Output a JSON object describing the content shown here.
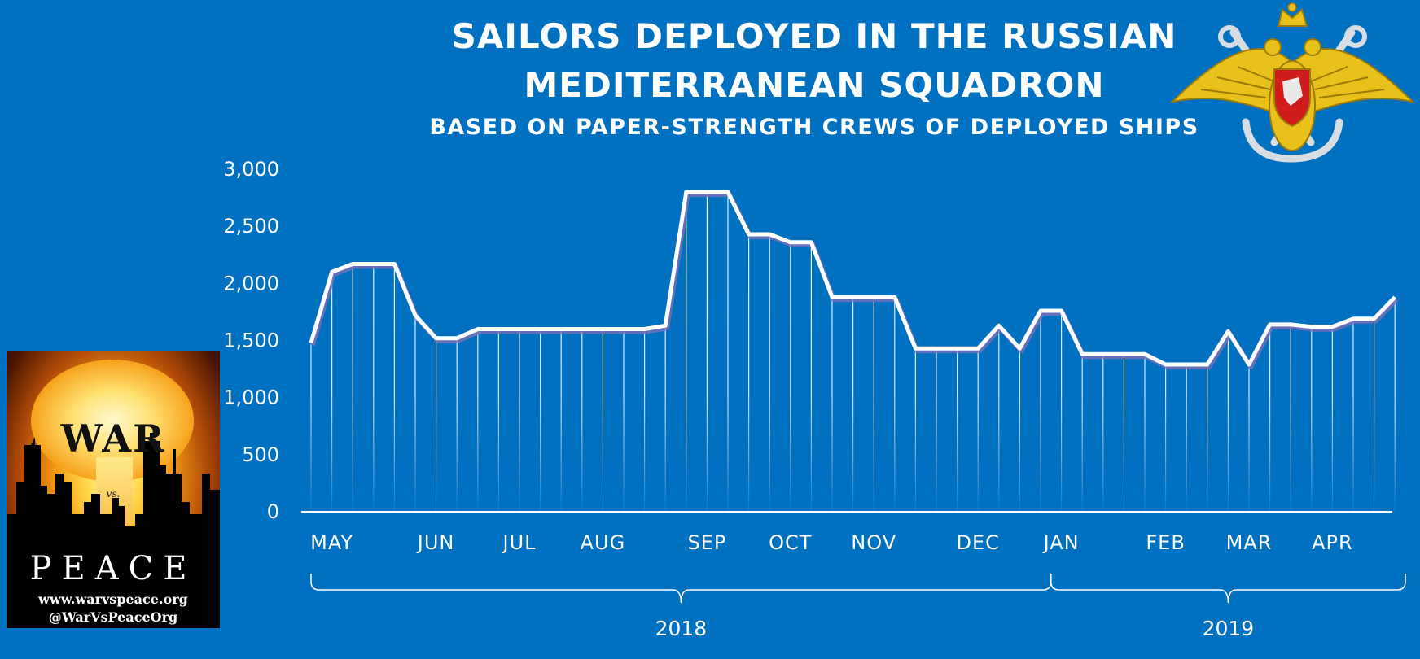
{
  "chart_data": {
    "type": "area",
    "title_line1": "SAILORS DEPLOYED IN THE RUSSIAN",
    "title_line2": "MEDITERRANEAN SQUADRON",
    "subtitle": "BASED ON PAPER-STRENGTH CREWS OF DEPLOYED SHIPS",
    "xlabel": "",
    "ylabel": "",
    "ylim": [
      0,
      3000
    ],
    "yticks": [
      0,
      500,
      1000,
      1500,
      2000,
      2500,
      3000
    ],
    "ytick_labels": [
      "0",
      "500",
      "1,000",
      "1,500",
      "2,000",
      "2,500",
      "3,000"
    ],
    "grid": false,
    "values": [
      1480,
      2100,
      2170,
      2170,
      2170,
      1720,
      1520,
      1520,
      1600,
      1600,
      1600,
      1600,
      1600,
      1600,
      1600,
      1600,
      1600,
      1630,
      2800,
      2800,
      2800,
      2430,
      2430,
      2360,
      2360,
      1880,
      1880,
      1880,
      1880,
      1430,
      1430,
      1430,
      1430,
      1630,
      1430,
      1760,
      1760,
      1380,
      1380,
      1380,
      1380,
      1290,
      1290,
      1290,
      1580,
      1290,
      1640,
      1640,
      1620,
      1620,
      1690,
      1690,
      1880
    ],
    "month_labels": [
      {
        "label": "MAY",
        "index": 1
      },
      {
        "label": "JUN",
        "index": 6
      },
      {
        "label": "JUL",
        "index": 10
      },
      {
        "label": "AUG",
        "index": 14
      },
      {
        "label": "SEP",
        "index": 19
      },
      {
        "label": "OCT",
        "index": 23
      },
      {
        "label": "NOV",
        "index": 27
      },
      {
        "label": "DEC",
        "index": 32
      },
      {
        "label": "JAN",
        "index": 36
      },
      {
        "label": "FEB",
        "index": 41
      },
      {
        "label": "MAR",
        "index": 45
      },
      {
        "label": "APR",
        "index": 49
      }
    ],
    "year_groups": [
      {
        "label": "2018",
        "start_index": 0,
        "end_index": 35.5
      },
      {
        "label": "2019",
        "start_index": 35.5,
        "end_index": 52.5
      }
    ],
    "line_color": "#ffffff",
    "background_color": "#0070c0"
  },
  "poster": {
    "war": "WAR",
    "vs": "vs.",
    "peace": "PEACE",
    "url": "www.warvspeace.org",
    "handle": "@WarVsPeaceOrg"
  },
  "emblem": {
    "icon": "russian-navy-emblem-icon"
  }
}
